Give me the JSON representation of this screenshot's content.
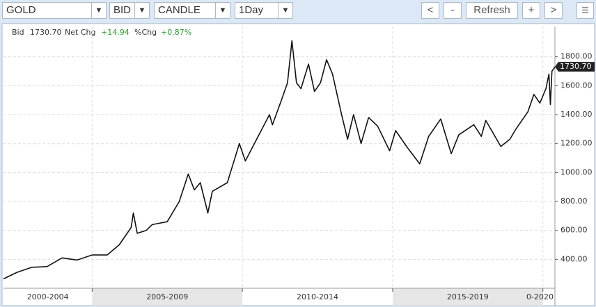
{
  "toolbar": {
    "symbol": "GOLD",
    "side": "BID",
    "style": "CANDLE",
    "interval": "1Day",
    "buttons": [
      "<",
      "-",
      "Refresh",
      "+",
      ">"
    ]
  },
  "chart_data": {
    "type": "line",
    "info": {
      "bid_label": "Bid",
      "bid": "1730.70",
      "net_label": "Net Chg",
      "net": "+14.94",
      "pct_label": "%Chg",
      "pct": "+0.87%"
    },
    "x": [
      2002.05,
      2002.5,
      2003.0,
      2003.5,
      2004.0,
      2004.5,
      2005.0,
      2005.5,
      2005.9,
      2006.3,
      2006.37,
      2006.5,
      2006.8,
      2007.0,
      2007.5,
      2007.9,
      2008.2,
      2008.4,
      2008.6,
      2008.85,
      2009.0,
      2009.5,
      2009.9,
      2010.1,
      2010.5,
      2010.9,
      2011.0,
      2011.3,
      2011.5,
      2011.65,
      2011.8,
      2011.95,
      2012.2,
      2012.4,
      2012.6,
      2012.8,
      2013.0,
      2013.3,
      2013.5,
      2013.7,
      2013.95,
      2014.2,
      2014.5,
      2014.9,
      2015.1,
      2015.5,
      2015.9,
      2016.2,
      2016.6,
      2016.95,
      2017.2,
      2017.7,
      2017.95,
      2018.1,
      2018.6,
      2018.9,
      2019.1,
      2019.5,
      2019.7,
      2019.9,
      2020.1,
      2020.2,
      2020.25,
      2020.3,
      2020.4
    ],
    "series": [
      {
        "name": "GOLD",
        "color": "#111111",
        "values": [
          265,
          310,
          345,
          350,
          410,
          395,
          430,
          430,
          500,
          620,
          720,
          580,
          600,
          640,
          660,
          800,
          990,
          880,
          930,
          720,
          870,
          930,
          1200,
          1080,
          1240,
          1400,
          1330,
          1500,
          1620,
          1910,
          1620,
          1580,
          1750,
          1560,
          1620,
          1780,
          1680,
          1400,
          1230,
          1400,
          1200,
          1380,
          1320,
          1150,
          1290,
          1170,
          1060,
          1250,
          1370,
          1130,
          1260,
          1330,
          1250,
          1360,
          1180,
          1230,
          1300,
          1420,
          1540,
          1480,
          1580,
          1680,
          1470,
          1700,
          1730.7
        ]
      }
    ],
    "xlim": [
      2002.05,
      2020.4
    ],
    "xticks": [
      {
        "value": 2000,
        "label": "2000-2004"
      },
      {
        "value": 2005,
        "label": "2005-2009"
      },
      {
        "value": 2010,
        "label": "2010-2014"
      },
      {
        "value": 2015,
        "label": "2015-2019"
      },
      {
        "value": 2020,
        "label": "0-2020"
      }
    ],
    "ylim": [
      200,
      2010
    ],
    "yticks": [
      {
        "value": 400,
        "label": "400.00"
      },
      {
        "value": 600,
        "label": "600.00"
      },
      {
        "value": 800,
        "label": "800.00"
      },
      {
        "value": 1000,
        "label": "1000.00"
      },
      {
        "value": 1200,
        "label": "1200.00"
      },
      {
        "value": 1400,
        "label": "1400.00"
      },
      {
        "value": 1600,
        "label": "1600.00"
      },
      {
        "value": 1800,
        "label": "1800.00"
      }
    ],
    "grid": true
  }
}
